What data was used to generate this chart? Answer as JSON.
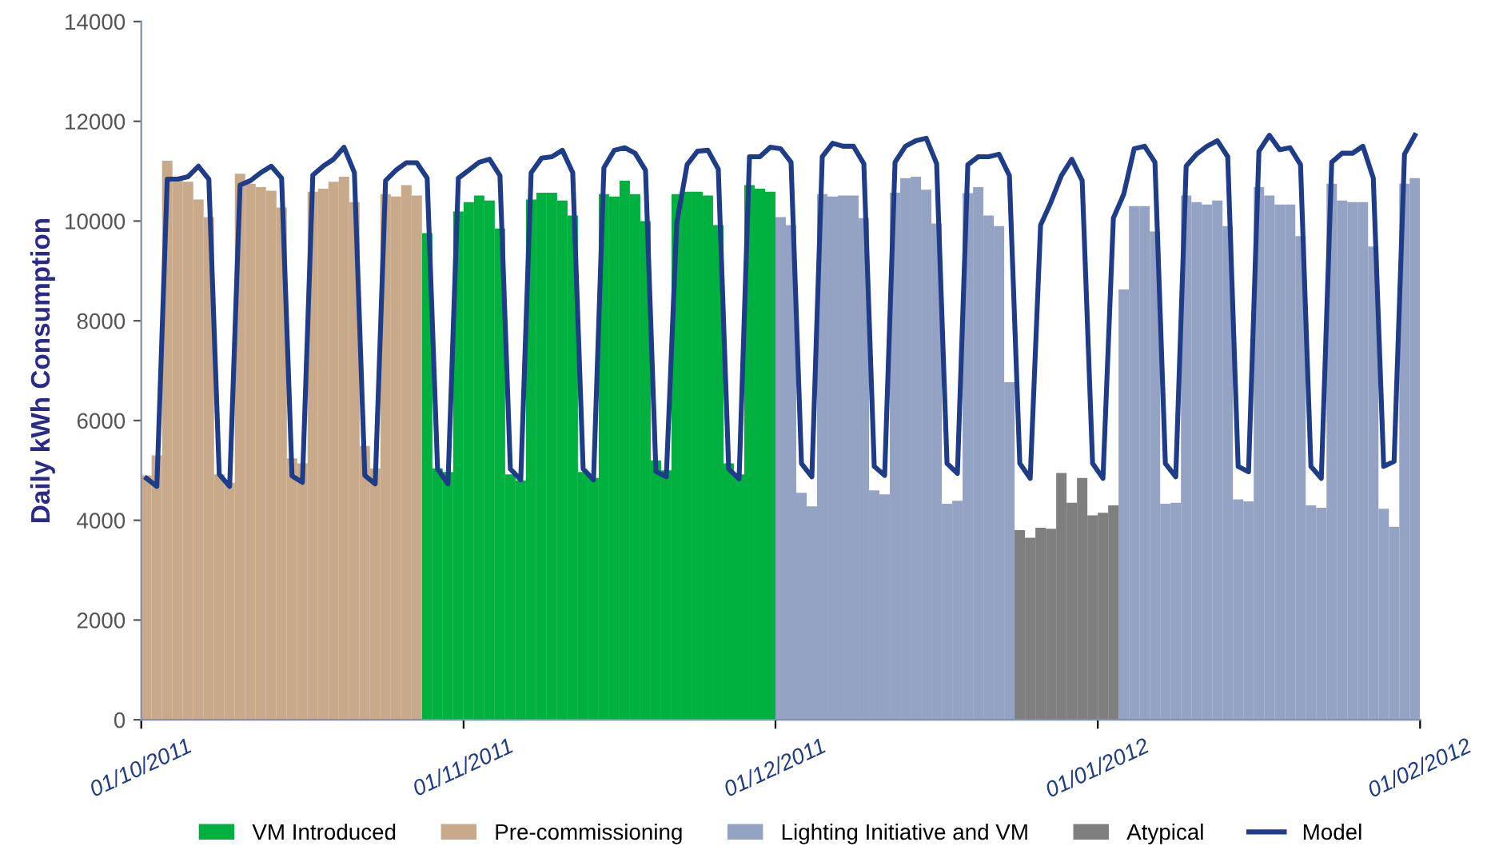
{
  "chart_data": {
    "type": "bar",
    "ylabel": "Daily kWh Consumption",
    "legend": "bottom",
    "grid": false,
    "xlim": [
      "2011-10-01",
      "2012-02-01"
    ],
    "xticks": [
      {
        "value": "2011-10-01",
        "label": "01/10/2011"
      },
      {
        "value": "2011-11-01",
        "label": "01/11/2011"
      },
      {
        "value": "2011-12-01",
        "label": "01/12/2011"
      },
      {
        "value": "2012-01-01",
        "label": "01/01/2012"
      },
      {
        "value": "2012-02-01",
        "label": "01/02/2012"
      }
    ],
    "ylim": [
      0,
      14000
    ],
    "yticks": [
      0,
      2000,
      4000,
      6000,
      8000,
      10000,
      12000,
      14000
    ],
    "series": [
      {
        "name": "VM Introduced",
        "color": "#00b140",
        "x": [
          "2011-10-28T12:00",
          "2011-10-29T12:00",
          "2011-10-30T12:00",
          "2011-10-31T12:00",
          "2011-11-01T12:00",
          "2011-11-02T12:00",
          "2011-11-03T12:00",
          "2011-11-04T12:00",
          "2011-11-05T12:00",
          "2011-11-06T12:00",
          "2011-11-07T12:00",
          "2011-11-08T12:00",
          "2011-11-09T12:00",
          "2011-11-10T12:00",
          "2011-11-11T12:00",
          "2011-11-12T12:00",
          "2011-11-13T12:00",
          "2011-11-14T12:00",
          "2011-11-15T12:00",
          "2011-11-16T12:00",
          "2011-11-17T12:00",
          "2011-11-18T12:00",
          "2011-11-19T12:00",
          "2011-11-20T12:00",
          "2011-11-21T12:00",
          "2011-11-22T12:00",
          "2011-11-23T12:00",
          "2011-11-24T12:00",
          "2011-11-25T12:00",
          "2011-11-26T12:00",
          "2011-11-27T12:00",
          "2011-11-28T12:00",
          "2011-11-29T12:00",
          "2011-11-30T12:00"
        ],
        "values": [
          9760,
          5040,
          4970,
          10190,
          10380,
          10510,
          10410,
          9850,
          4920,
          4800,
          10430,
          10570,
          10570,
          10410,
          10110,
          4970,
          4850,
          10540,
          10490,
          10810,
          10540,
          10000,
          5200,
          5000,
          10540,
          10590,
          10590,
          10510,
          9920,
          5140,
          4920,
          10720,
          10650,
          10590
        ]
      },
      {
        "name": "Pre-commissioning",
        "color": "#c8aa8b",
        "x": [
          "2011-10-01T12:00",
          "2011-10-02T12:00",
          "2011-10-03T12:00",
          "2011-10-04T12:00",
          "2011-10-05T12:00",
          "2011-10-06T12:00",
          "2011-10-07T12:00",
          "2011-10-08T12:00",
          "2011-10-09T12:00",
          "2011-10-10T12:00",
          "2011-10-11T12:00",
          "2011-10-12T12:00",
          "2011-10-13T12:00",
          "2011-10-14T12:00",
          "2011-10-15T12:00",
          "2011-10-16T12:00",
          "2011-10-17T12:00",
          "2011-10-18T12:00",
          "2011-10-19T12:00",
          "2011-10-20T12:00",
          "2011-10-21T12:00",
          "2011-10-22T12:00",
          "2011-10-23T12:00",
          "2011-10-24T12:00",
          "2011-10-25T12:00",
          "2011-10-26T12:00",
          "2011-10-27T12:00"
        ],
        "values": [
          4900,
          5300,
          11210,
          10860,
          10790,
          10430,
          10080,
          4920,
          4750,
          10950,
          10750,
          10680,
          10610,
          10270,
          5240,
          5140,
          10590,
          10650,
          10790,
          10890,
          10380,
          5490,
          5040,
          10540,
          10490,
          10720,
          10510
        ]
      },
      {
        "name": "Lighting Initiative and VM",
        "color": "#94a3c4",
        "x": [
          "2011-12-01T12:00",
          "2011-12-02T12:00",
          "2011-12-03T12:00",
          "2011-12-04T12:00",
          "2011-12-05T12:00",
          "2011-12-06T12:00",
          "2011-12-07T12:00",
          "2011-12-08T12:00",
          "2011-12-09T12:00",
          "2011-12-10T12:00",
          "2011-12-11T12:00",
          "2011-12-12T12:00",
          "2011-12-13T12:00",
          "2011-12-14T12:00",
          "2011-12-15T12:00",
          "2011-12-16T12:00",
          "2011-12-17T12:00",
          "2011-12-18T12:00",
          "2011-12-19T12:00",
          "2011-12-20T12:00",
          "2011-12-21T12:00",
          "2011-12-22T12:00",
          "2011-12-23T12:00",
          "2012-01-03T12:00",
          "2012-01-04T12:00",
          "2012-01-05T12:00",
          "2012-01-06T12:00",
          "2012-01-07T12:00",
          "2012-01-08T12:00",
          "2012-01-09T12:00",
          "2012-01-10T12:00",
          "2012-01-11T12:00",
          "2012-01-12T12:00",
          "2012-01-13T12:00",
          "2012-01-14T12:00",
          "2012-01-15T12:00",
          "2012-01-16T12:00",
          "2012-01-17T12:00",
          "2012-01-18T12:00",
          "2012-01-19T12:00",
          "2012-01-20T12:00",
          "2012-01-21T12:00",
          "2012-01-22T12:00",
          "2012-01-23T12:00",
          "2012-01-24T12:00",
          "2012-01-25T12:00",
          "2012-01-26T12:00",
          "2012-01-27T12:00",
          "2012-01-28T12:00",
          "2012-01-29T12:00",
          "2012-01-30T12:00",
          "2012-01-31T12:00"
        ],
        "values": [
          10080,
          9920,
          4550,
          4280,
          10540,
          10490,
          10510,
          10510,
          10060,
          4600,
          4520,
          10570,
          10860,
          10890,
          10630,
          9950,
          4330,
          4390,
          10560,
          10680,
          10110,
          9900,
          6770,
          8630,
          10300,
          10300,
          9790,
          4330,
          4350,
          10510,
          10380,
          10330,
          10410,
          9900,
          4420,
          4380,
          10680,
          10510,
          10330,
          10330,
          9700,
          4300,
          4250,
          10750,
          10410,
          10380,
          10380,
          9490,
          4230,
          3870,
          10750,
          10860
        ]
      },
      {
        "name": "Atypical",
        "color": "#7f7f7f",
        "x": [
          "2011-12-24T12:00",
          "2011-12-25T12:00",
          "2011-12-26T12:00",
          "2011-12-27T12:00",
          "2011-12-28T12:00",
          "2011-12-29T12:00",
          "2011-12-30T12:00",
          "2011-12-31T12:00",
          "2012-01-01T12:00",
          "2012-01-02T12:00"
        ],
        "values": [
          3800,
          3650,
          3850,
          3830,
          4950,
          4350,
          4850,
          4100,
          4150,
          4300
        ]
      },
      {
        "name": "Model",
        "type": "line",
        "color": "#1f3c88",
        "x": [
          "2011-10-01T12:00",
          "2011-10-02T12:00",
          "2011-10-03T12:00",
          "2011-10-04T12:00",
          "2011-10-05T12:00",
          "2011-10-06T12:00",
          "2011-10-07T12:00",
          "2011-10-08T12:00",
          "2011-10-09T12:00",
          "2011-10-10T12:00",
          "2011-10-11T12:00",
          "2011-10-12T12:00",
          "2011-10-13T12:00",
          "2011-10-14T12:00",
          "2011-10-15T12:00",
          "2011-10-16T12:00",
          "2011-10-17T12:00",
          "2011-10-18T12:00",
          "2011-10-19T12:00",
          "2011-10-20T12:00",
          "2011-10-21T12:00",
          "2011-10-22T12:00",
          "2011-10-23T12:00",
          "2011-10-24T12:00",
          "2011-10-25T12:00",
          "2011-10-26T12:00",
          "2011-10-27T12:00",
          "2011-10-28T12:00",
          "2011-10-29T12:00",
          "2011-10-30T12:00",
          "2011-10-31T12:00",
          "2011-11-01T12:00",
          "2011-11-02T12:00",
          "2011-11-03T12:00",
          "2011-11-04T12:00",
          "2011-11-05T12:00",
          "2011-11-06T12:00",
          "2011-11-07T12:00",
          "2011-11-08T12:00",
          "2011-11-09T12:00",
          "2011-11-10T12:00",
          "2011-11-11T12:00",
          "2011-11-12T12:00",
          "2011-11-13T12:00",
          "2011-11-14T12:00",
          "2011-11-15T12:00",
          "2011-11-16T12:00",
          "2011-11-17T12:00",
          "2011-11-18T12:00",
          "2011-11-19T12:00",
          "2011-11-20T12:00",
          "2011-11-21T12:00",
          "2011-11-22T12:00",
          "2011-11-23T12:00",
          "2011-11-24T12:00",
          "2011-11-25T12:00",
          "2011-11-26T12:00",
          "2011-11-27T12:00",
          "2011-11-28T12:00",
          "2011-11-29T12:00",
          "2011-11-30T12:00",
          "2011-12-01T12:00",
          "2011-12-02T12:00",
          "2011-12-03T12:00",
          "2011-12-04T12:00",
          "2011-12-05T12:00",
          "2011-12-06T12:00",
          "2011-12-07T12:00",
          "2011-12-08T12:00",
          "2011-12-09T12:00",
          "2011-12-10T12:00",
          "2011-12-11T12:00",
          "2011-12-12T12:00",
          "2011-12-13T12:00",
          "2011-12-14T12:00",
          "2011-12-15T12:00",
          "2011-12-16T12:00",
          "2011-12-17T12:00",
          "2011-12-18T12:00",
          "2011-12-19T12:00",
          "2011-12-20T12:00",
          "2011-12-21T12:00",
          "2011-12-22T12:00",
          "2011-12-23T12:00",
          "2011-12-24T12:00",
          "2011-12-25T12:00",
          "2011-12-26T12:00",
          "2011-12-27T12:00",
          "2011-12-28T12:00",
          "2011-12-29T12:00",
          "2011-12-30T12:00",
          "2011-12-31T12:00",
          "2012-01-01T12:00",
          "2012-01-02T12:00",
          "2012-01-03T12:00",
          "2012-01-04T12:00",
          "2012-01-05T12:00",
          "2012-01-06T12:00",
          "2012-01-07T12:00",
          "2012-01-08T12:00",
          "2012-01-09T12:00",
          "2012-01-10T12:00",
          "2012-01-11T12:00",
          "2012-01-12T12:00",
          "2012-01-13T12:00",
          "2012-01-14T12:00",
          "2012-01-15T12:00",
          "2012-01-16T12:00",
          "2012-01-17T12:00",
          "2012-01-18T12:00",
          "2012-01-19T12:00",
          "2012-01-20T12:00",
          "2012-01-21T12:00",
          "2012-01-22T12:00",
          "2012-01-23T12:00",
          "2012-01-24T12:00",
          "2012-01-25T12:00",
          "2012-01-26T12:00",
          "2012-01-27T12:00",
          "2012-01-28T12:00",
          "2012-01-29T12:00",
          "2012-01-30T12:00",
          "2012-01-31T12:00"
        ],
        "values": [
          4840,
          4680,
          10840,
          10840,
          10890,
          11100,
          10840,
          4920,
          4680,
          10720,
          10810,
          10970,
          11100,
          10860,
          4890,
          4760,
          10920,
          11100,
          11240,
          11480,
          10970,
          4900,
          4730,
          10810,
          11020,
          11170,
          11170,
          10860,
          5030,
          4730,
          10860,
          11020,
          11180,
          11240,
          10910,
          5030,
          4810,
          10970,
          11260,
          11290,
          11420,
          10970,
          5030,
          4810,
          11070,
          11420,
          11470,
          11360,
          11020,
          4980,
          4870,
          9950,
          11130,
          11400,
          11420,
          11040,
          5030,
          4830,
          11290,
          11290,
          11480,
          11450,
          11180,
          5140,
          4870,
          11290,
          11560,
          11500,
          11500,
          11150,
          5080,
          4900,
          11180,
          11500,
          11610,
          11660,
          11150,
          5140,
          4940,
          11130,
          11290,
          11290,
          11340,
          10910,
          5140,
          4840,
          9920,
          10380,
          10910,
          11240,
          10810,
          5140,
          4840,
          10060,
          10540,
          11450,
          11500,
          11180,
          5140,
          4870,
          11100,
          11340,
          11500,
          11610,
          11290,
          5080,
          4970,
          11400,
          11720,
          11430,
          11470,
          11130,
          5080,
          4840,
          11180,
          11360,
          11360,
          11500,
          10860,
          5080,
          5180,
          11340,
          11720
        ]
      }
    ]
  }
}
